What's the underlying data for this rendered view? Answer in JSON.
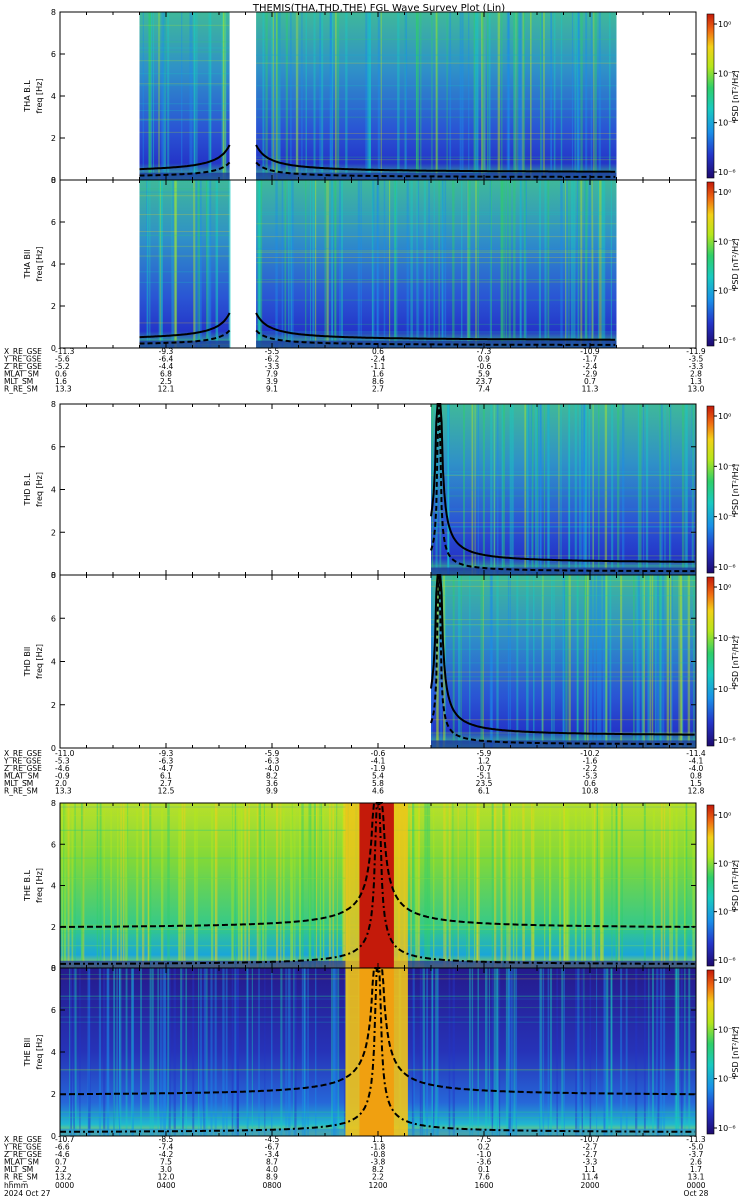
{
  "title": "THEMIS(THA,THD,THE) FGL Wave Survey Plot (Lin)",
  "colorbar": {
    "label": "PSD [nT²/Hz]",
    "ticks": [
      "10⁰",
      "10⁻²",
      "10⁻⁴",
      "10⁻⁶"
    ],
    "ticks_panel6": [
      "10⁰",
      "10⁻²",
      "10⁻⁴",
      "10⁻⁶"
    ]
  },
  "chart_data": {
    "type": "heatmap",
    "freq_axis": {
      "label": "freq [Hz]",
      "ylim": [
        0,
        8
      ],
      "ticks": [
        "0",
        "2",
        "4",
        "6",
        "8"
      ]
    },
    "time_axis": {
      "start": "2024-10-27 00:00",
      "end": "2024-10-28 00:00",
      "ticks_hhmm": [
        "0000",
        "0400",
        "0800",
        "1200",
        "1600",
        "2000",
        "0000"
      ],
      "ticks_date": [
        "2024 Oct 27",
        "",
        "",
        "",
        "",
        "",
        "Oct 28"
      ]
    },
    "panels": [
      {
        "label": "THA B.L",
        "probe": "THA",
        "component": "B.L",
        "data_hours": [
          [
            3.0,
            6.4
          ],
          [
            7.4,
            21.0
          ]
        ],
        "style": "sparse"
      },
      {
        "label": "THA Bll",
        "probe": "THA",
        "component": "Bll",
        "data_hours": [
          [
            3.0,
            6.4
          ],
          [
            7.4,
            21.0
          ]
        ],
        "style": "sparse"
      },
      {
        "label": "THD B.L",
        "probe": "THD",
        "component": "B.L",
        "data_hours": [
          [
            14.0,
            24.0
          ]
        ],
        "style": "sparse"
      },
      {
        "label": "THD Bll",
        "probe": "THD",
        "component": "Bll",
        "data_hours": [
          [
            14.0,
            24.0
          ]
        ],
        "style": "sparse"
      },
      {
        "label": "THE B.L",
        "probe": "THE",
        "component": "B.L",
        "data_hours": [
          [
            0.0,
            24.0
          ]
        ],
        "style": "strong"
      },
      {
        "label": "THE Bll",
        "probe": "THE",
        "component": "Bll",
        "data_hours": [
          [
            0.0,
            24.0
          ]
        ],
        "style": "mixed"
      }
    ],
    "ephemeris": [
      {
        "probe": "THA",
        "rows": [
          {
            "name": "X_RE_GSE",
            "values": [
              "-11.3",
              "-9.3",
              "-5.5",
              "0.6",
              "-7.3",
              "-10.9",
              "-11.9"
            ]
          },
          {
            "name": "Y_RE_GSE",
            "values": [
              "-5.6",
              "-6.4",
              "-6.2",
              "-2.4",
              "0.9",
              "-1.7",
              "-3.5"
            ]
          },
          {
            "name": "Z_RE_GSE",
            "values": [
              "-5.2",
              "-4.4",
              "-3.3",
              "-1.1",
              "-0.6",
              "-2.4",
              "-3.3"
            ]
          },
          {
            "name": "MLAT_SM",
            "values": [
              "0.6",
              "6.8",
              "7.9",
              "1.6",
              "5.9",
              "-2.9",
              "2.8"
            ]
          },
          {
            "name": "MLT_SM",
            "values": [
              "1.6",
              "2.5",
              "3.9",
              "8.6",
              "23.7",
              "0.7",
              "1.3"
            ]
          },
          {
            "name": "R_RE_SM",
            "values": [
              "13.3",
              "12.1",
              "9.1",
              "2.7",
              "7.4",
              "11.3",
              "13.0"
            ]
          }
        ]
      },
      {
        "probe": "THD",
        "rows": [
          {
            "name": "X_RE_GSE",
            "values": [
              "-11.0",
              "-9.3",
              "-5.9",
              "-0.6",
              "-5.9",
              "-10.2",
              "-11.4"
            ]
          },
          {
            "name": "Y_RE_GSE",
            "values": [
              "-5.3",
              "-6.3",
              "-6.3",
              "-4.1",
              "1.2",
              "-1.6",
              "-4.1"
            ]
          },
          {
            "name": "Z_RE_GSE",
            "values": [
              "-4.6",
              "-4.7",
              "-4.0",
              "-1.9",
              "-0.7",
              "-2.2",
              "-4.0"
            ]
          },
          {
            "name": "MLAT_SM",
            "values": [
              "-0.9",
              "6.1",
              "8.2",
              "5.4",
              "-5.1",
              "-5.3",
              "0.8"
            ]
          },
          {
            "name": "MLT_SM",
            "values": [
              "2.0",
              "2.7",
              "3.6",
              "5.8",
              "23.5",
              "0.6",
              "1.5"
            ]
          },
          {
            "name": "R_RE_SM",
            "values": [
              "13.3",
              "12.5",
              "9.9",
              "4.6",
              "6.1",
              "10.8",
              "12.8"
            ]
          }
        ]
      },
      {
        "probe": "THE",
        "rows": [
          {
            "name": "X_RE_GSE",
            "values": [
              "-10.7",
              "-8.5",
              "-4.5",
              "1.1",
              "-7.5",
              "-10.7",
              "-11.3"
            ]
          },
          {
            "name": "Y_RE_GSE",
            "values": [
              "-6.6",
              "-7.4",
              "-6.7",
              "-1.8",
              "0.2",
              "-2.7",
              "-5.0"
            ]
          },
          {
            "name": "Z_RE_GSE",
            "values": [
              "-4.6",
              "-4.2",
              "-3.4",
              "-0.8",
              "-1.0",
              "-2.7",
              "-3.7"
            ]
          },
          {
            "name": "MLAT_SM",
            "values": [
              "0.7",
              "7.5",
              "8.7",
              "-3.8",
              "-3.6",
              "-3.3",
              "2.6"
            ]
          },
          {
            "name": "MLT_SM",
            "values": [
              "2.2",
              "3.0",
              "4.0",
              "8.2",
              "0.1",
              "1.1",
              "1.7"
            ]
          },
          {
            "name": "R_RE_SM",
            "values": [
              "13.2",
              "12.0",
              "8.9",
              "2.2",
              "7.6",
              "11.4",
              "13.1"
            ]
          }
        ]
      }
    ]
  }
}
